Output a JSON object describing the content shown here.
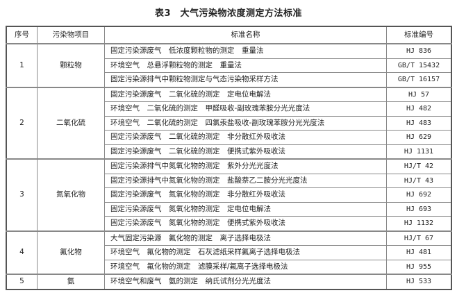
{
  "title": "表3　大气污染物浓度测定方法标准",
  "headers": [
    "序号",
    "污染物项目",
    "标准名称",
    "标准编号"
  ],
  "groups": [
    {
      "no": "1",
      "pollutant": "颗粒物",
      "rows": [
        {
          "name": "固定污染源废气　低浓度颗粒物的测定　重量法",
          "code": "HJ 836"
        },
        {
          "name": "环境空气　总悬浮颗粒物的测定　重量法",
          "code": "GB/T 15432"
        },
        {
          "name": "固定污染源排气中颗粒物测定与气态污染物采样方法",
          "code": "GB/T 16157"
        }
      ]
    },
    {
      "no": "2",
      "pollutant": "二氧化硫",
      "rows": [
        {
          "name": "固定污染源废气　二氧化硫的测定　定电位电解法",
          "code": "HJ 57"
        },
        {
          "name": "环境空气　二氧化硫的测定　甲醛吸收-副玫瑰苯胺分光光度法",
          "code": "HJ 482"
        },
        {
          "name": "环境空气　二氧化硫的测定　四氯汞盐吸收-副玫瑰苯胺分光光度法",
          "code": "HJ 483"
        },
        {
          "name": "固定污染源废气　二氧化硫的测定　非分散红外吸收法",
          "code": "HJ 629"
        },
        {
          "name": "固定污染源废气　二氧化硫的测定　便携式紫外吸收法",
          "code": "HJ 1131"
        }
      ]
    },
    {
      "no": "3",
      "pollutant": "氮氧化物",
      "rows": [
        {
          "name": "固定污染源排气中氮氧化物的测定　紫外分光光度法",
          "code": "HJ/T 42"
        },
        {
          "name": "固定污染源排气中氮氧化物的测定　盐酸萘乙二胺分光光度法",
          "code": "HJ/T 43"
        },
        {
          "name": "固定污染源废气　氮氧化物的测定　非分散红外吸收法",
          "code": "HJ 692"
        },
        {
          "name": "固定污染源废气　氮氧化物的测定　定电位电解法",
          "code": "HJ 693"
        },
        {
          "name": "固定污染源废气　氮氧化物的测定　便携式紫外吸收法",
          "code": "HJ 1132"
        }
      ]
    },
    {
      "no": "4",
      "pollutant": "氟化物",
      "rows": [
        {
          "name": "大气固定污染源　氟化物的测定　离子选择电极法",
          "code": "HJ/T 67"
        },
        {
          "name": "环境空气　氟化物的测定　石灰滤纸采样氟离子选择电极法",
          "code": "HJ 481"
        },
        {
          "name": "环境空气　氟化物的测定　滤膜采样/氟离子选择电极法",
          "code": "HJ 955"
        }
      ]
    },
    {
      "no": "5",
      "pollutant": "氨",
      "rows": [
        {
          "name": "环境空气和废气　氨的测定　纳氏试剂分光光度法",
          "code": "HJ 533"
        }
      ]
    }
  ]
}
